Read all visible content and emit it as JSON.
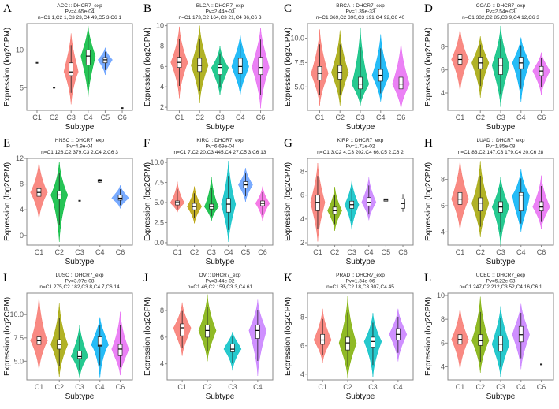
{
  "chart_data": {
    "type": "violin",
    "xlabel": "Subtype",
    "ylabel": "Expression (log2CPM)",
    "panels": [
      {
        "letter": "A",
        "title": "ACC :: DHCR7_exp",
        "pv": "Pv=4.65e-04",
        "n": "n=C1 1,C2 1,C3 23,C4 49,C5 3,C6 1",
        "ylim": [
          2,
          13.5
        ],
        "yticks": [
          5,
          10
        ],
        "ytick_labels": [
          "5",
          "10"
        ],
        "groups": [
          {
            "name": "C1",
            "point": 8.3
          },
          {
            "name": "C2",
            "point": 5.0
          },
          {
            "name": "C3",
            "color": "#F8766D",
            "lo": 2.8,
            "q1": 6.6,
            "med": 7.1,
            "q3": 8.3,
            "hi": 12.2
          },
          {
            "name": "C4",
            "color": "#00BA38",
            "lo": 3.8,
            "q1": 8.0,
            "med": 9.2,
            "q3": 10.0,
            "hi": 13.2
          },
          {
            "name": "C5",
            "color": "#619CFF",
            "lo": 6.7,
            "q1": 8.3,
            "med": 8.7,
            "q3": 9.0,
            "hi": 10.3
          },
          {
            "name": "C6",
            "point": 2.3
          }
        ]
      },
      {
        "letter": "B",
        "title": "BLCA :: DHCR7_exp",
        "pv": "Pv=2.44e-03",
        "n": "n=C1 173,C2 164,C3 21,C4 36,C6 3",
        "ylim": [
          1.7,
          10.2
        ],
        "yticks": [
          2,
          4,
          6,
          8,
          10
        ],
        "ytick_labels": [
          "2",
          "4",
          "6",
          "8",
          "10"
        ],
        "groups": [
          {
            "name": "C1",
            "color": "#F8766D",
            "lo": 2.9,
            "q1": 5.9,
            "med": 6.4,
            "q3": 6.9,
            "hi": 9.9
          },
          {
            "name": "C2",
            "color": "#A3A500",
            "lo": 2.4,
            "q1": 5.5,
            "med": 6.1,
            "q3": 6.8,
            "hi": 10.0
          },
          {
            "name": "C3",
            "color": "#00BF7D",
            "lo": 3.2,
            "q1": 5.2,
            "med": 5.9,
            "q3": 6.2,
            "hi": 8.0
          },
          {
            "name": "C4",
            "color": "#00B0F6",
            "lo": 3.2,
            "q1": 5.3,
            "med": 6.0,
            "q3": 6.8,
            "hi": 9.1
          },
          {
            "name": "C6",
            "color": "#E76BF3",
            "lo": 1.9,
            "q1": 5.2,
            "med": 5.9,
            "q3": 6.9,
            "hi": 9.8
          }
        ]
      },
      {
        "letter": "C",
        "title": "BRCA :: DHCR7_exp",
        "pv": "Pv=1.35e-33",
        "n": "n=C1 369,C2 390,C3 191,C4 92,C6 40",
        "ylim": [
          2.6,
          11.5
        ],
        "yticks": [
          5,
          7.5,
          10
        ],
        "ytick_labels": [
          "5.0",
          "7.5",
          "10.0"
        ],
        "groups": [
          {
            "name": "C1",
            "color": "#F8766D",
            "lo": 3.1,
            "q1": 5.7,
            "med": 6.4,
            "q3": 7.1,
            "hi": 10.9
          },
          {
            "name": "C2",
            "color": "#A3A500",
            "lo": 3.1,
            "q1": 5.8,
            "med": 6.5,
            "q3": 7.2,
            "hi": 10.8
          },
          {
            "name": "C3",
            "color": "#00BF7D",
            "lo": 3.1,
            "q1": 4.8,
            "med": 5.3,
            "q3": 6.0,
            "hi": 11.1
          },
          {
            "name": "C4",
            "color": "#00B0F6",
            "lo": 3.5,
            "q1": 5.6,
            "med": 6.2,
            "q3": 6.8,
            "hi": 10.4
          },
          {
            "name": "C6",
            "color": "#E76BF3",
            "lo": 2.7,
            "q1": 4.8,
            "med": 5.3,
            "q3": 6.0,
            "hi": 9.6
          }
        ]
      },
      {
        "letter": "D",
        "title": "COAD :: DHCR7_exp",
        "pv": "Pv=2.54e-03",
        "n": "n=C1 332,C2 85,C3 9,C4 12,C6 3",
        "ylim": [
          2.5,
          10
        ],
        "yticks": [
          4,
          6,
          8
        ],
        "ytick_labels": [
          "4",
          "6",
          "8"
        ],
        "groups": [
          {
            "name": "C1",
            "color": "#F8766D",
            "lo": 4.1,
            "q1": 6.5,
            "med": 6.9,
            "q3": 7.3,
            "hi": 9.6
          },
          {
            "name": "C2",
            "color": "#A3A500",
            "lo": 3.6,
            "q1": 6.1,
            "med": 6.6,
            "q3": 7.1,
            "hi": 8.9
          },
          {
            "name": "C3",
            "color": "#00BF7D",
            "lo": 2.8,
            "q1": 5.6,
            "med": 6.4,
            "q3": 7.0,
            "hi": 9.8
          },
          {
            "name": "C4",
            "color": "#00B0F6",
            "lo": 3.2,
            "q1": 6.1,
            "med": 6.6,
            "q3": 7.1,
            "hi": 8.8
          },
          {
            "name": "C6",
            "color": "#E76BF3",
            "lo": 3.8,
            "q1": 5.5,
            "med": 5.9,
            "q3": 6.3,
            "hi": 7.5
          }
        ]
      },
      {
        "letter": "E",
        "title": "HNSC :: DHCR7_exp",
        "pv": "Pv=4.9e-04",
        "n": "n=C1 128,C2 379,C3 2,C4 2,C6 3",
        "ylim": [
          -1.5,
          12
        ],
        "yticks": [
          0,
          4,
          8,
          12
        ],
        "ytick_labels": [
          "0",
          "4",
          "8",
          "12"
        ],
        "groups": [
          {
            "name": "C1",
            "color": "#F8766D",
            "lo": 2.5,
            "q1": 6.1,
            "med": 6.7,
            "q3": 7.3,
            "hi": 11.5
          },
          {
            "name": "C2",
            "color": "#00BA38",
            "lo": -1.0,
            "q1": 5.7,
            "med": 6.3,
            "q3": 6.9,
            "hi": 11.5
          },
          {
            "name": "C3",
            "point": 5.4
          },
          {
            "name": "C4",
            "box_only": true,
            "lo": 8.2,
            "q1": 8.3,
            "med": 8.5,
            "q3": 8.7,
            "hi": 8.8
          },
          {
            "name": "C6",
            "color": "#619CFF",
            "lo": 4.2,
            "q1": 5.5,
            "med": 5.8,
            "q3": 6.3,
            "hi": 7.8
          }
        ]
      },
      {
        "letter": "F",
        "title": "KIRC :: DHCR7_exp",
        "pv": "Pv=6.69e-04",
        "n": "n=C1 7,C2 20,C3 445,C4 27,C5 3,C6 13",
        "ylim": [
          -0.3,
          10.5
        ],
        "yticks": [
          0,
          2.5,
          5,
          7.5,
          10
        ],
        "ytick_labels": [
          "0.0",
          "2.5",
          "5.0",
          "7.5",
          "10.0"
        ],
        "groups": [
          {
            "name": "C1",
            "color": "#F8766D",
            "lo": 3.8,
            "q1": 4.7,
            "med": 5.0,
            "q3": 5.2,
            "hi": 7.6
          },
          {
            "name": "C2",
            "color": "#B79F00",
            "lo": 2.4,
            "q1": 4.1,
            "med": 4.5,
            "q3": 4.9,
            "hi": 7.0
          },
          {
            "name": "C3",
            "color": "#00BA38",
            "lo": 2.7,
            "q1": 4.2,
            "med": 4.5,
            "q3": 4.8,
            "hi": 8.2
          },
          {
            "name": "C4",
            "color": "#00BFC4",
            "lo": 0.1,
            "q1": 3.8,
            "med": 4.8,
            "q3": 5.5,
            "hi": 10.2
          },
          {
            "name": "C5",
            "color": "#619CFF",
            "lo": 5.1,
            "q1": 6.8,
            "med": 7.2,
            "q3": 7.6,
            "hi": 9.3
          },
          {
            "name": "C6",
            "color": "#F564E3",
            "lo": 2.7,
            "q1": 4.6,
            "med": 4.9,
            "q3": 5.2,
            "hi": 7.0
          }
        ]
      },
      {
        "letter": "G",
        "title": "KIRP :: DHCR7_exp",
        "pv": "Pv=1.71e-02",
        "n": "n=C1 3,C2 4,C3 202,C4 66,C5 2,C6 2",
        "ylim": [
          1.8,
          9.1
        ],
        "yticks": [
          2,
          4,
          6,
          8
        ],
        "ytick_labels": [
          "2",
          "4",
          "6",
          "8"
        ],
        "groups": [
          {
            "name": "C1",
            "color": "#F8766D",
            "lo": 2.1,
            "q1": 4.7,
            "med": 5.4,
            "q3": 6.0,
            "hi": 8.7
          },
          {
            "name": "C2",
            "color": "#7CAE00",
            "lo": 3.0,
            "q1": 4.4,
            "med": 4.7,
            "q3": 5.0,
            "hi": 6.7
          },
          {
            "name": "C3",
            "color": "#00BFC4",
            "lo": 3.1,
            "q1": 4.9,
            "med": 5.2,
            "q3": 5.5,
            "hi": 7.2
          },
          {
            "name": "C4",
            "color": "#C77CFF",
            "lo": 3.9,
            "q1": 5.1,
            "med": 5.4,
            "q3": 5.8,
            "hi": 7.5
          },
          {
            "name": "C5",
            "box_only": true,
            "lo": 5.5,
            "q1": 5.5,
            "med": 5.6,
            "q3": 5.7,
            "hi": 5.7
          },
          {
            "name": "C6",
            "box_only": true,
            "lo": 4.6,
            "q1": 4.9,
            "med": 5.3,
            "q3": 5.7,
            "hi": 6.1
          }
        ]
      },
      {
        "letter": "H",
        "title": "LUAD :: DHCR7_exp",
        "pv": "Pv=1.85e-08",
        "n": "n=C1 83,C2 147,C3 179,C4 20,C6 28",
        "ylim": [
          3,
          9.6
        ],
        "yticks": [
          4,
          6,
          8
        ],
        "ytick_labels": [
          "4",
          "6",
          "8"
        ],
        "groups": [
          {
            "name": "C1",
            "color": "#F8766D",
            "lo": 4.1,
            "q1": 6.1,
            "med": 6.5,
            "q3": 7.0,
            "hi": 9.5
          },
          {
            "name": "C2",
            "color": "#A3A500",
            "lo": 3.6,
            "q1": 5.6,
            "med": 6.2,
            "q3": 6.6,
            "hi": 9.4
          },
          {
            "name": "C3",
            "color": "#00BF7D",
            "lo": 3.0,
            "q1": 5.5,
            "med": 5.9,
            "q3": 6.3,
            "hi": 8.2
          },
          {
            "name": "C4",
            "color": "#00B0F6",
            "lo": 4.0,
            "q1": 5.6,
            "med": 6.8,
            "q3": 7.0,
            "hi": 8.8
          },
          {
            "name": "C6",
            "color": "#E76BF3",
            "lo": 4.2,
            "q1": 5.6,
            "med": 5.9,
            "q3": 6.3,
            "hi": 8.3
          }
        ]
      },
      {
        "letter": "I",
        "title": "LUSC :: DHCR7_exp",
        "pv": "Pv=3.97e-08",
        "n": "n=C1 275,C2 182,C3 8,C4 7,C6 14",
        "ylim": [
          3,
          12.3
        ],
        "yticks": [
          5,
          7.5,
          10
        ],
        "ytick_labels": [
          "5.0",
          "7.5",
          "10.0"
        ],
        "groups": [
          {
            "name": "C1",
            "color": "#F8766D",
            "lo": 4.0,
            "q1": 6.8,
            "med": 7.2,
            "q3": 7.6,
            "hi": 12.0
          },
          {
            "name": "C2",
            "color": "#A3A500",
            "lo": 3.3,
            "q1": 6.3,
            "med": 6.8,
            "q3": 7.3,
            "hi": 11.2
          },
          {
            "name": "C3",
            "color": "#00BF7D",
            "lo": 3.2,
            "q1": 5.3,
            "med": 5.5,
            "q3": 6.1,
            "hi": 8.9
          },
          {
            "name": "C4",
            "color": "#00B0F6",
            "lo": 3.2,
            "q1": 6.6,
            "med": 6.7,
            "q3": 7.6,
            "hi": 9.7
          },
          {
            "name": "C6",
            "color": "#E76BF3",
            "lo": 3.5,
            "q1": 5.6,
            "med": 6.3,
            "q3": 6.8,
            "hi": 10.3
          }
        ]
      },
      {
        "letter": "J",
        "title": "OV :: DHCR7_exp",
        "pv": "Pv=3.44e-02",
        "n": "n=C1 46,C2 159,C3 3,C4 61",
        "ylim": [
          2.8,
          9.3
        ],
        "yticks": [
          4,
          6,
          8
        ],
        "ytick_labels": [
          "4",
          "6",
          "8"
        ],
        "groups": [
          {
            "name": "C1",
            "color": "#F8766D",
            "lo": 4.6,
            "q1": 6.1,
            "med": 6.7,
            "q3": 7.0,
            "hi": 8.6
          },
          {
            "name": "C2",
            "color": "#7CAE00",
            "lo": 4.2,
            "q1": 6.0,
            "med": 6.5,
            "q3": 6.9,
            "hi": 9.2
          },
          {
            "name": "C3",
            "color": "#00BFC4",
            "lo": 3.5,
            "q1": 4.9,
            "med": 5.1,
            "q3": 5.5,
            "hi": 6.4
          },
          {
            "name": "C4",
            "color": "#C77CFF",
            "lo": 3.1,
            "q1": 5.9,
            "med": 6.5,
            "q3": 6.9,
            "hi": 8.8
          }
        ]
      },
      {
        "letter": "K",
        "title": "PRAD :: DHCR7_exp",
        "pv": "Pv=1.34e-06",
        "n": "n=C1 35,C2 18,C3 307,C4 45",
        "ylim": [
          3.6,
          9.7
        ],
        "yticks": [
          4,
          6,
          8
        ],
        "ytick_labels": [
          "4",
          "6",
          "8"
        ],
        "groups": [
          {
            "name": "C1",
            "color": "#F8766D",
            "lo": 4.8,
            "q1": 6.1,
            "med": 6.4,
            "q3": 6.8,
            "hi": 8.6
          },
          {
            "name": "C2",
            "color": "#7CAE00",
            "lo": 3.7,
            "q1": 5.7,
            "med": 6.2,
            "q3": 6.6,
            "hi": 9.5
          },
          {
            "name": "C3",
            "color": "#00BFC4",
            "lo": 3.8,
            "q1": 5.9,
            "med": 6.3,
            "q3": 6.6,
            "hi": 8.3
          },
          {
            "name": "C4",
            "color": "#C77CFF",
            "lo": 4.9,
            "q1": 6.4,
            "med": 6.8,
            "q3": 7.2,
            "hi": 8.6
          }
        ]
      },
      {
        "letter": "L",
        "title": "UCEC :: DHCR7_exp",
        "pv": "Pv=5.22e-03",
        "n": "n=C1 247,C2 212,C3 52,C4 16,C6 1",
        "ylim": [
          2.9,
          10.2
        ],
        "yticks": [
          4,
          6,
          8,
          10
        ],
        "ytick_labels": [
          "4",
          "6",
          "8",
          "10"
        ],
        "groups": [
          {
            "name": "C1",
            "color": "#F8766D",
            "lo": 3.7,
            "q1": 5.9,
            "med": 6.3,
            "q3": 6.7,
            "hi": 9.0
          },
          {
            "name": "C2",
            "color": "#7CAE00",
            "lo": 3.5,
            "q1": 5.8,
            "med": 6.2,
            "q3": 6.7,
            "hi": 9.9
          },
          {
            "name": "C3",
            "color": "#00BFC4",
            "lo": 3.1,
            "q1": 5.3,
            "med": 5.9,
            "q3": 6.6,
            "hi": 9.1
          },
          {
            "name": "C4",
            "color": "#C77CFF",
            "lo": 3.8,
            "q1": 6.1,
            "med": 6.7,
            "q3": 7.4,
            "hi": 9.3
          },
          {
            "name": "C6",
            "point": 4.2
          }
        ]
      }
    ]
  }
}
